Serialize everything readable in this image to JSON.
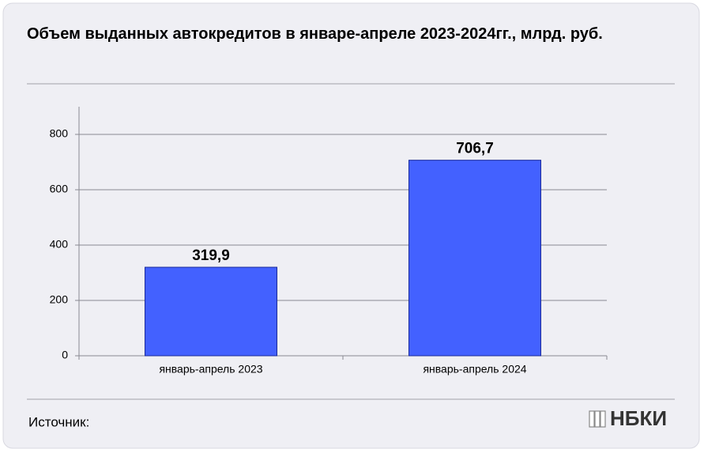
{
  "chart_data": {
    "type": "bar",
    "title": "Объем выданных автокредитов в январе-апреле 2023-2024гг., млрд. руб.",
    "categories": [
      "январь-апрель 2023",
      "январь-апрель 2024"
    ],
    "values": [
      319.9,
      706.7
    ],
    "value_labels": [
      "319,9",
      "706,7"
    ],
    "color": "#4361ff",
    "ylim": [
      0,
      900
    ],
    "yticks": [
      0,
      200,
      400,
      600,
      800
    ],
    "grid": true
  },
  "footer": {
    "source": "Источник:",
    "logo": "НБКИ"
  }
}
